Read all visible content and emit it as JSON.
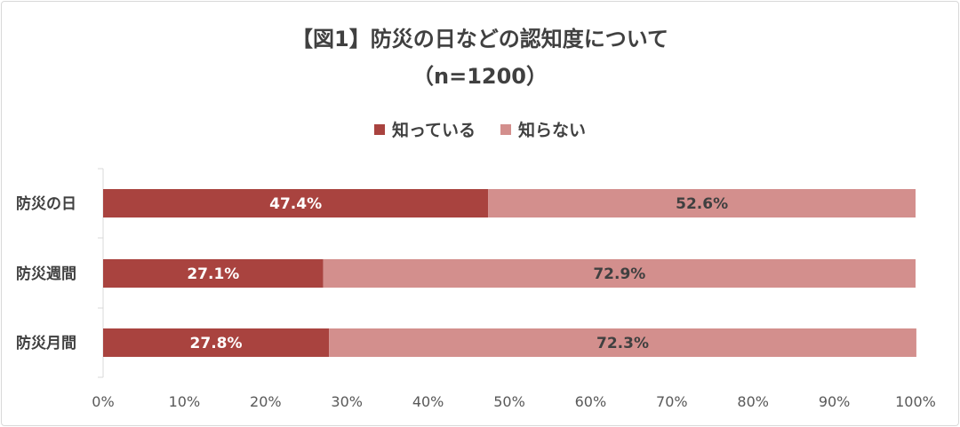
{
  "chart_data": {
    "type": "bar",
    "orientation": "horizontal",
    "stacked": true,
    "title": "【図1】防災の日などの認知度について",
    "subtitle": "（n=1200）",
    "categories": [
      "防災の日",
      "防災週間",
      "防災月間"
    ],
    "series": [
      {
        "name": "知っている",
        "values": [
          47.4,
          27.1,
          27.8
        ],
        "labels": [
          "47.4%",
          "27.1%",
          "27.8%"
        ],
        "color": "#a9433f",
        "label_color": "#ffffff"
      },
      {
        "name": "知らない",
        "values": [
          52.6,
          72.9,
          72.3
        ],
        "labels": [
          "52.6%",
          "72.9%",
          "72.3%"
        ],
        "color": "#d38f8d",
        "label_color": "#404040"
      }
    ],
    "xlim": [
      0,
      100
    ],
    "x_ticks": [
      "0%",
      "10%",
      "20%",
      "30%",
      "40%",
      "50%",
      "60%",
      "70%",
      "80%",
      "90%",
      "100%"
    ],
    "legend_position": "top",
    "grid": false
  }
}
